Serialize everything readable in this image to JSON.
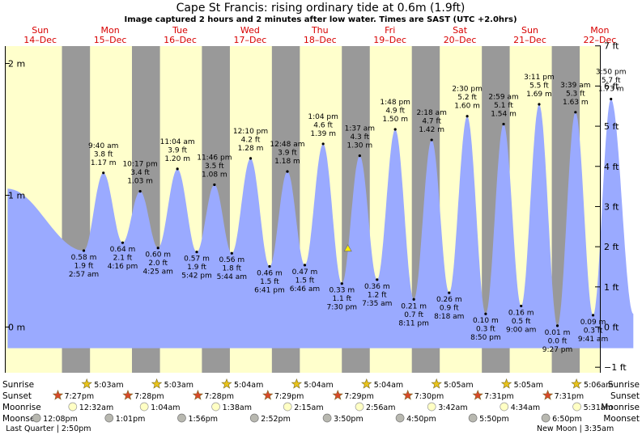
{
  "title": "Cape St Francis: rising  ordinary tide at 0.6m (1.9ft)",
  "subtitle": "Image captured 2 hours and 2 minutes after low water. Times are SAST (UTC +2.0hrs)",
  "chart_data": {
    "type": "area",
    "title": "Cape St Francis: rising  ordinary tide at 0.6m (1.9ft)",
    "subtitle": "Image captured 2 hours and 2 minutes after low water. Times are SAST (UTC +2.0hrs)",
    "x_range_hours_from_sun14_midnight": [
      0,
      216
    ],
    "y_left": {
      "unit": "m",
      "range": [
        -0.22,
        2.05
      ],
      "ticks": [
        {
          "v": 0,
          "label": "0 m"
        },
        {
          "v": 1,
          "label": "1 m"
        },
        {
          "v": 2,
          "label": "2 m"
        }
      ]
    },
    "y_right": {
      "unit": "ft",
      "ticks": [
        {
          "v": -1,
          "label": "−1 ft"
        },
        {
          "v": 0,
          "label": "0 ft"
        },
        {
          "v": 1,
          "label": "1 ft"
        },
        {
          "v": 2,
          "label": "2 ft"
        },
        {
          "v": 3,
          "label": "3 ft"
        },
        {
          "v": 4,
          "label": "4 ft"
        },
        {
          "v": 5,
          "label": "5 ft"
        },
        {
          "v": 6,
          "label": "6 ft"
        },
        {
          "v": 7,
          "label": "7 ft"
        }
      ]
    },
    "days": [
      {
        "name": "Sun",
        "date": "14–Dec"
      },
      {
        "name": "Mon",
        "date": "15–Dec"
      },
      {
        "name": "Tue",
        "date": "16–Dec"
      },
      {
        "name": "Wed",
        "date": "17–Dec"
      },
      {
        "name": "Thu",
        "date": "18–Dec"
      },
      {
        "name": "Fri",
        "date": "19–Dec"
      },
      {
        "name": "Sat",
        "date": "20–Dec"
      },
      {
        "name": "Sun",
        "date": "21–Dec"
      },
      {
        "name": "Mon",
        "date": "22–Dec"
      }
    ],
    "tide_start": {
      "h": 0.8,
      "m": 1.05
    },
    "tide_end": {
      "h": 215.5,
      "m": 0.1
    },
    "tides": [
      {
        "type": "low",
        "h": 26.95,
        "m": 0.58,
        "ft": "1.9 ft",
        "m_label": "0.58 m",
        "time": "2:57 am"
      },
      {
        "type": "high",
        "h": 33.67,
        "m": 1.17,
        "ft": "3.8 ft",
        "m_label": "1.17 m",
        "time": "9:40 am"
      },
      {
        "type": "low",
        "h": 40.27,
        "m": 0.64,
        "ft": "2.1 ft",
        "m_label": "0.64 m",
        "time": "4:16 pm"
      },
      {
        "type": "high",
        "h": 46.28,
        "m": 1.03,
        "ft": "3.4 ft",
        "m_label": "1.03 m",
        "time": "10:17 pm"
      },
      {
        "type": "low",
        "h": 52.42,
        "m": 0.6,
        "ft": "2.0 ft",
        "m_label": "0.60 m",
        "time": "4:25 am"
      },
      {
        "type": "high",
        "h": 59.07,
        "m": 1.2,
        "ft": "3.9 ft",
        "m_label": "1.20 m",
        "time": "11:04 am"
      },
      {
        "type": "low",
        "h": 65.7,
        "m": 0.57,
        "ft": "1.9 ft",
        "m_label": "0.57 m",
        "time": "5:42 pm"
      },
      {
        "type": "high",
        "h": 71.77,
        "m": 1.08,
        "ft": "3.5 ft",
        "m_label": "1.08 m",
        "time": "11:46 pm"
      },
      {
        "type": "low",
        "h": 77.73,
        "m": 0.56,
        "ft": "1.8 ft",
        "m_label": "0.56 m",
        "time": "5:44 am"
      },
      {
        "type": "high",
        "h": 84.17,
        "m": 1.28,
        "ft": "4.2 ft",
        "m_label": "1.28 m",
        "time": "12:10 pm"
      },
      {
        "type": "low",
        "h": 90.68,
        "m": 0.46,
        "ft": "1.5 ft",
        "m_label": "0.46 m",
        "time": "6:41 pm"
      },
      {
        "type": "high",
        "h": 96.8,
        "m": 1.18,
        "ft": "3.9 ft",
        "m_label": "1.18 m",
        "time": "12:48 am"
      },
      {
        "type": "low",
        "h": 102.77,
        "m": 0.47,
        "ft": "1.5 ft",
        "m_label": "0.47 m",
        "time": "6:46 am"
      },
      {
        "type": "high",
        "h": 109.07,
        "m": 1.39,
        "ft": "4.6 ft",
        "m_label": "1.39 m",
        "time": "1:04 pm"
      },
      {
        "type": "low",
        "h": 115.5,
        "m": 0.33,
        "ft": "1.1 ft",
        "m_label": "0.33 m",
        "time": "7:30 pm"
      },
      {
        "type": "high",
        "h": 121.62,
        "m": 1.3,
        "ft": "4.3 ft",
        "m_label": "1.30 m",
        "time": "1:37 am"
      },
      {
        "type": "low",
        "h": 127.58,
        "m": 0.36,
        "ft": "1.2 ft",
        "m_label": "0.36 m",
        "time": "7:35 am"
      },
      {
        "type": "high",
        "h": 133.8,
        "m": 1.5,
        "ft": "4.9 ft",
        "m_label": "1.50 m",
        "time": "1:48 pm"
      },
      {
        "type": "low",
        "h": 140.18,
        "m": 0.21,
        "ft": "0.7 ft",
        "m_label": "0.21 m",
        "time": "8:11 pm"
      },
      {
        "type": "high",
        "h": 146.3,
        "m": 1.42,
        "ft": "4.7 ft",
        "m_label": "1.42 m",
        "time": "2:18 am"
      },
      {
        "type": "low",
        "h": 152.3,
        "m": 0.26,
        "ft": "0.9 ft",
        "m_label": "0.26 m",
        "time": "8:18 am"
      },
      {
        "type": "high",
        "h": 158.5,
        "m": 1.6,
        "ft": "5.2 ft",
        "m_label": "1.60 m",
        "time": "2:30 pm"
      },
      {
        "type": "low",
        "h": 164.83,
        "m": 0.1,
        "ft": "0.3 ft",
        "m_label": "0.10 m",
        "time": "8:50 pm"
      },
      {
        "type": "high",
        "h": 170.98,
        "m": 1.54,
        "ft": "5.1 ft",
        "m_label": "1.54 m",
        "time": "2:59 am"
      },
      {
        "type": "low",
        "h": 177.0,
        "m": 0.16,
        "ft": "0.5 ft",
        "m_label": "0.16 m",
        "time": "9:00 am"
      },
      {
        "type": "high",
        "h": 183.18,
        "m": 1.69,
        "ft": "5.5 ft",
        "m_label": "1.69 m",
        "time": "3:11 pm"
      },
      {
        "type": "low",
        "h": 189.45,
        "m": 0.01,
        "ft": "0.0 ft",
        "m_label": "0.01 m",
        "time": "9:27 pm"
      },
      {
        "type": "high",
        "h": 195.65,
        "m": 1.63,
        "ft": "5.3 ft",
        "m_label": "1.63 m",
        "time": "3:39 am"
      },
      {
        "type": "low",
        "h": 201.68,
        "m": 0.09,
        "ft": "0.3 ft",
        "m_label": "0.09 m",
        "time": "9:41 am"
      },
      {
        "type": "high",
        "h": 207.83,
        "m": 1.73,
        "ft": "5.7 ft",
        "m_label": "1.73 m",
        "time": "3:50 pm"
      }
    ],
    "current_tide": {
      "h": 117.55,
      "m": 0.6
    },
    "rows": {
      "sunrise_label": "Sunrise",
      "sunset_label": "Sunset",
      "moonrise_label": "Moonrise",
      "moonset_label": "Moonset",
      "sunrise": [
        {
          "h": 29.08,
          "t": "5:03am"
        },
        {
          "h": 53.08,
          "t": "5:03am"
        },
        {
          "h": 77.07,
          "t": "5:04am"
        },
        {
          "h": 101.07,
          "t": "5:04am"
        },
        {
          "h": 125.07,
          "t": "5:04am"
        },
        {
          "h": 149.08,
          "t": "5:05am"
        },
        {
          "h": 173.08,
          "t": "5:05am"
        },
        {
          "h": 197.1,
          "t": "5:06am"
        }
      ],
      "sunset": [
        {
          "h": 19.45,
          "t": "7:27pm"
        },
        {
          "h": 43.47,
          "t": "7:28pm"
        },
        {
          "h": 67.47,
          "t": "7:28pm"
        },
        {
          "h": 91.48,
          "t": "7:29pm"
        },
        {
          "h": 115.48,
          "t": "7:29pm"
        },
        {
          "h": 139.5,
          "t": "7:30pm"
        },
        {
          "h": 163.52,
          "t": "7:31pm"
        },
        {
          "h": 187.52,
          "t": "7:31pm"
        }
      ],
      "moonrise": [
        {
          "h": 24.53,
          "t": "12:32am"
        },
        {
          "h": 49.07,
          "t": "1:04am"
        },
        {
          "h": 73.63,
          "t": "1:38am"
        },
        {
          "h": 98.25,
          "t": "2:15am"
        },
        {
          "h": 122.93,
          "t": "2:56am"
        },
        {
          "h": 147.7,
          "t": "3:42am"
        },
        {
          "h": 172.57,
          "t": "4:34am"
        },
        {
          "h": 197.52,
          "t": "5:31am"
        }
      ],
      "moonset": [
        {
          "h": 12.13,
          "t": "12:08pm"
        },
        {
          "h": 37.02,
          "t": "1:01pm"
        },
        {
          "h": 61.93,
          "t": "1:56pm"
        },
        {
          "h": 86.87,
          "t": "2:52pm"
        },
        {
          "h": 111.83,
          "t": "3:50pm"
        },
        {
          "h": 136.83,
          "t": "4:50pm"
        },
        {
          "h": 161.83,
          "t": "5:50pm"
        },
        {
          "h": 186.83,
          "t": "6:50pm"
        }
      ],
      "moon_phases": [
        {
          "h": 14.83,
          "t": "Last Quarter | 2:50pm"
        },
        {
          "h": 195.58,
          "t": "New Moon | 3:35am"
        }
      ]
    }
  },
  "colors": {
    "day": "#ffffcc",
    "night": "#999999",
    "water": "#9aaaff",
    "day_label": "#d80000",
    "sun_star": "#e8c21a",
    "sunset_star": "#d8482a",
    "moon_fill": "#ffffc4",
    "moonset_fill": "#b8b8b0",
    "current_marker": "#ffee00"
  }
}
